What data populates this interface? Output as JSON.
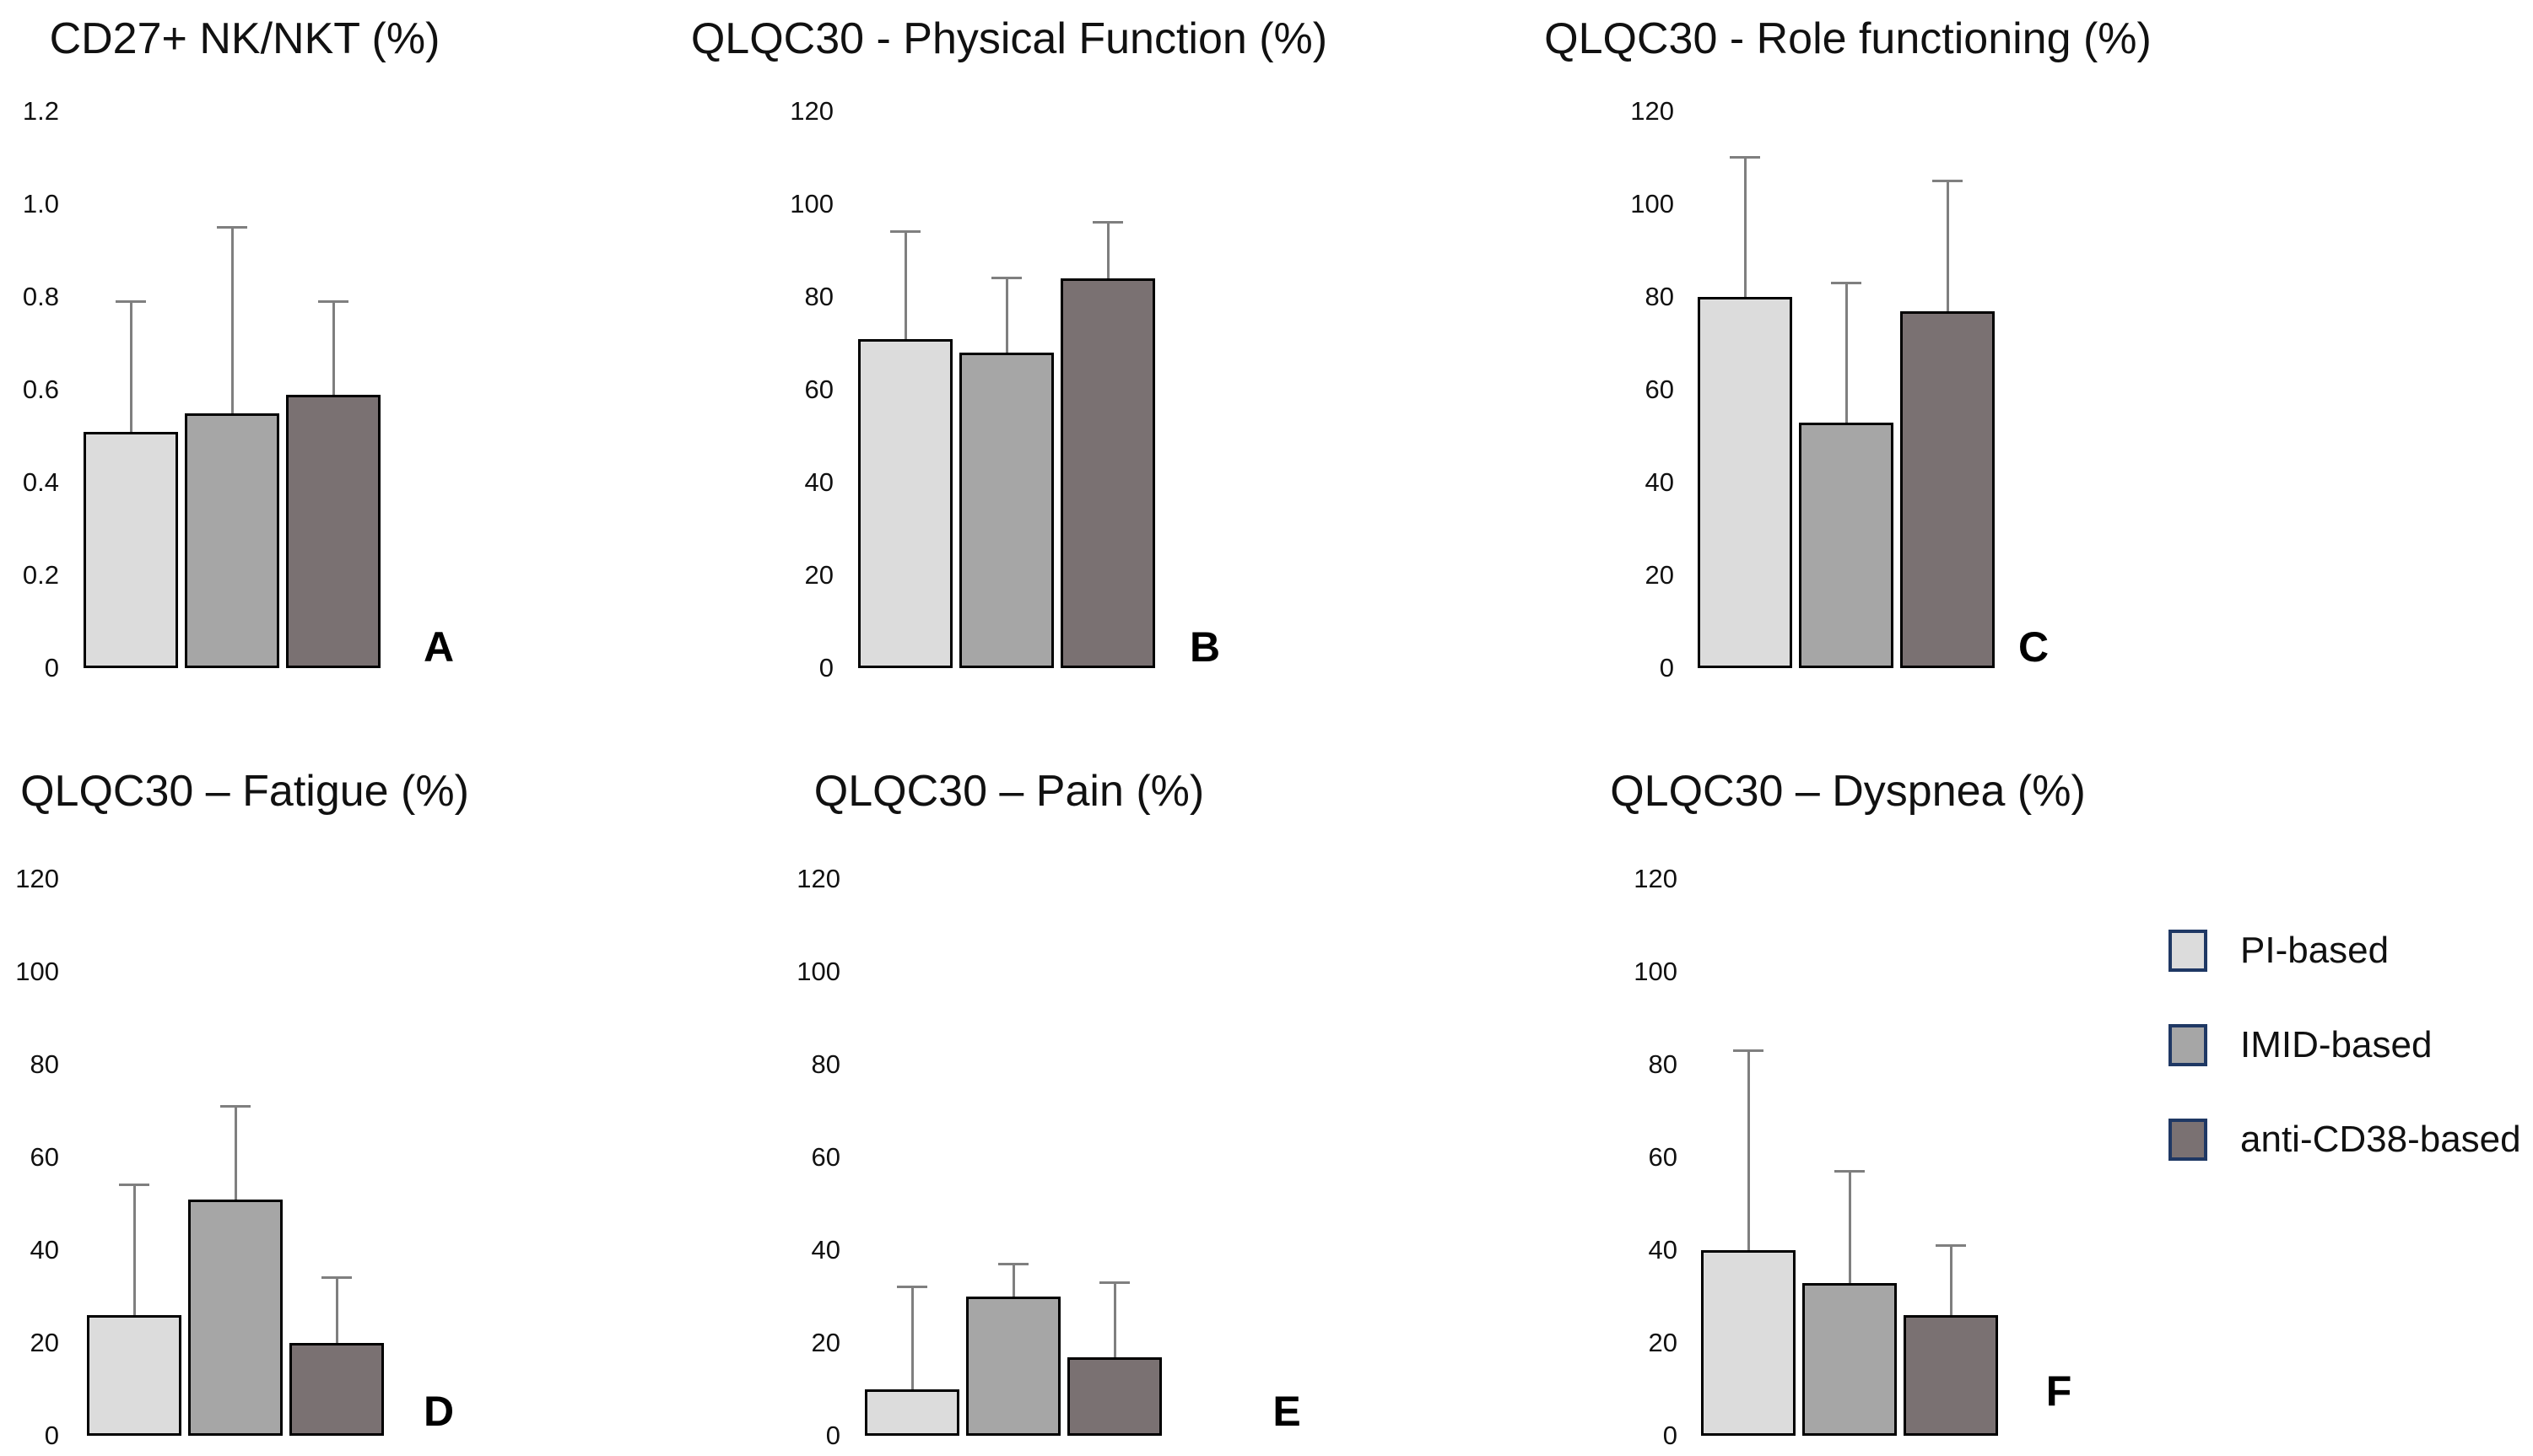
{
  "figure_background": "#ffffff",
  "series_colors": {
    "PI-based": "#dcdcdc",
    "IMID-based": "#a6a6a6",
    "anti-CD38-based": "#7a7172",
    "bar_outline": "#000000",
    "error_bar": "#7f7f7f",
    "legend_border": "#1f3864"
  },
  "legend": {
    "position": "right-middle",
    "entries": [
      {
        "label": "PI-based",
        "fill": "#dcdcdc"
      },
      {
        "label": "IMID-based",
        "fill": "#a6a6a6"
      },
      {
        "label": "anti-CD38-based",
        "fill": "#7a7172"
      }
    ]
  },
  "chart_data": [
    {
      "type": "bar",
      "panel_letter": "A",
      "title": "CD27+ NK/NKT (%)",
      "categories": [
        "PI-based",
        "IMID-based",
        "anti-CD38-based"
      ],
      "values": [
        0.51,
        0.55,
        0.59
      ],
      "error_plus": [
        0.28,
        0.4,
        0.2
      ],
      "ylim": [
        0,
        1.2
      ],
      "ytick_labels_top_to_bottom": [
        "1.2",
        "1.0",
        "0.8",
        "0.6",
        "0.4",
        "0.2",
        "0"
      ],
      "grid": false,
      "legend": false
    },
    {
      "type": "bar",
      "panel_letter": "B",
      "title": "QLQC30 - Physical Function (%)",
      "categories": [
        "PI-based",
        "IMID-based",
        "anti-CD38-based"
      ],
      "values": [
        71,
        68,
        84
      ],
      "error_plus": [
        23,
        16,
        12
      ],
      "ylim": [
        0,
        120
      ],
      "ytick_labels_top_to_bottom": [
        "120",
        "100",
        "80",
        "60",
        "40",
        "20",
        "0"
      ],
      "grid": false,
      "legend": false
    },
    {
      "type": "bar",
      "panel_letter": "C",
      "title": "QLQC30 - Role functioning (%)",
      "categories": [
        "PI-based",
        "IMID-based",
        "anti-CD38-based"
      ],
      "values": [
        80,
        53,
        77
      ],
      "error_plus": [
        30,
        30,
        28
      ],
      "ylim": [
        0,
        120
      ],
      "ytick_labels_top_to_bottom": [
        "120",
        "100",
        "80",
        "60",
        "40",
        "20",
        "0"
      ],
      "grid": false,
      "legend": false
    },
    {
      "type": "bar",
      "panel_letter": "D",
      "title": "QLQC30 – Fatigue (%)",
      "categories": [
        "PI-based",
        "IMID-based",
        "anti-CD38-based"
      ],
      "values": [
        26,
        51,
        20
      ],
      "error_plus": [
        28,
        20,
        14
      ],
      "ylim": [
        0,
        120
      ],
      "ytick_labels_top_to_bottom": [
        "120",
        "100",
        "80",
        "60",
        "40",
        "20",
        "0"
      ],
      "grid": false,
      "legend": false
    },
    {
      "type": "bar",
      "panel_letter": "E",
      "title": "QLQC30 – Pain (%)",
      "categories": [
        "PI-based",
        "IMID-based",
        "anti-CD38-based"
      ],
      "values": [
        10,
        30,
        17
      ],
      "error_plus": [
        22,
        7,
        16
      ],
      "ylim": [
        0,
        120
      ],
      "ytick_labels_top_to_bottom": [
        "120",
        "100",
        "80",
        "60",
        "40",
        "20",
        "0"
      ],
      "grid": false,
      "legend": false
    },
    {
      "type": "bar",
      "panel_letter": "F",
      "title": "QLQC30 – Dyspnea (%)",
      "categories": [
        "PI-based",
        "IMID-based",
        "anti-CD38-based"
      ],
      "values": [
        40,
        33,
        26
      ],
      "error_plus": [
        43,
        24,
        15
      ],
      "ylim": [
        0,
        120
      ],
      "ytick_labels_top_to_bottom": [
        "120",
        "100",
        "80",
        "60",
        "40",
        "20",
        "0"
      ],
      "grid": false,
      "legend": false
    }
  ]
}
